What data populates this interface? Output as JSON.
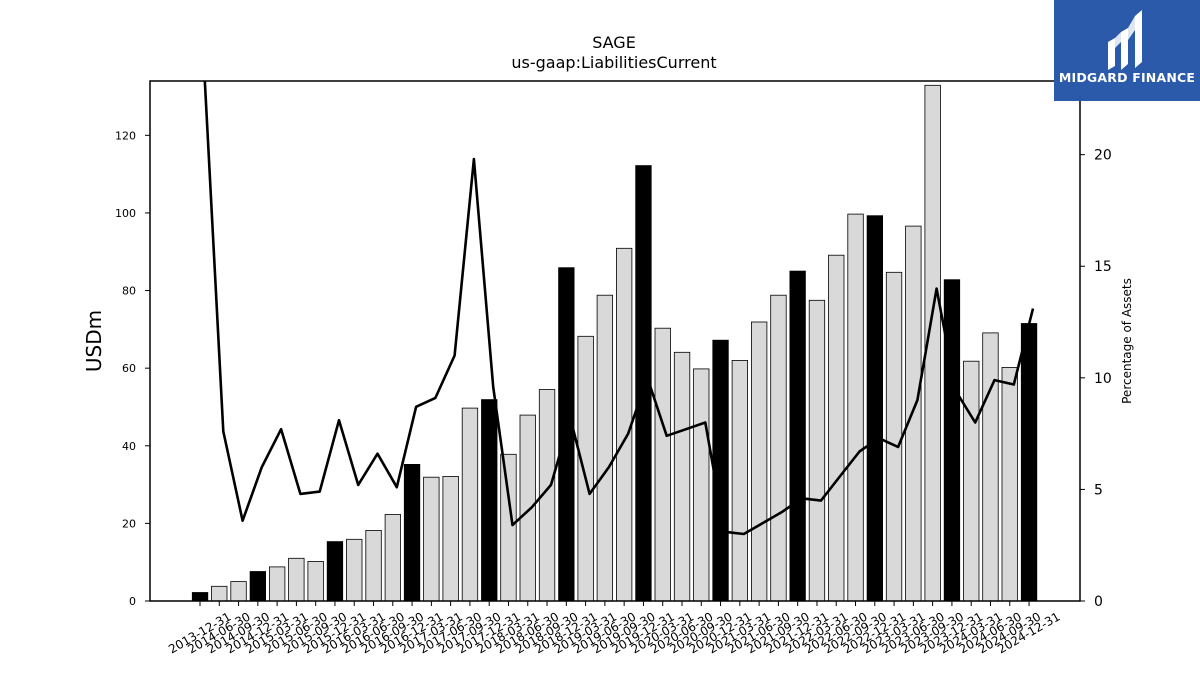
{
  "chart_data": {
    "type": "bar",
    "title": "SAGE",
    "subtitle": "us-gaap:LiabilitiesCurrent",
    "ylabel": "USDm",
    "y2label": "Percentage of Assets",
    "ylim": [
      0,
      134
    ],
    "y2lim": [
      0,
      23.3
    ],
    "yticks": [
      0,
      20,
      40,
      60,
      80,
      100,
      120
    ],
    "y2ticks": [
      0,
      5,
      10,
      15,
      20
    ],
    "categories": [
      "2013-12-31",
      "2014-06-30",
      "2014-09-30",
      "2014-12-31",
      "2015-03-31",
      "2015-06-30",
      "2015-09-30",
      "2015-12-31",
      "2016-03-31",
      "2016-06-30",
      "2016-09-30",
      "2016-12-31",
      "2017-03-31",
      "2017-06-30",
      "2017-09-30",
      "2017-12-31",
      "2018-03-31",
      "2018-06-30",
      "2018-09-30",
      "2018-12-31",
      "2019-03-31",
      "2019-06-30",
      "2019-09-30",
      "2019-12-31",
      "2020-03-31",
      "2020-06-30",
      "2020-09-30",
      "2020-12-31",
      "2021-03-31",
      "2021-06-30",
      "2021-09-30",
      "2021-12-31",
      "2022-03-31",
      "2022-06-30",
      "2022-09-30",
      "2022-12-31",
      "2023-03-31",
      "2023-06-30",
      "2023-09-30",
      "2023-12-31",
      "2024-03-31",
      "2024-06-30",
      "2024-09-30",
      "2024-12-31"
    ],
    "series": [
      {
        "type": "bar",
        "values": [
          2.2,
          3.8,
          5.0,
          7.6,
          8.8,
          11.0,
          10.2,
          15.3,
          15.9,
          18.2,
          22.3,
          35.2,
          31.9,
          32.1,
          49.7,
          51.9,
          37.8,
          47.9,
          54.5,
          85.9,
          68.2,
          78.8,
          90.9,
          112.2,
          70.3,
          64.1,
          59.8,
          67.2,
          62.0,
          71.9,
          78.8,
          85.0,
          77.5,
          89.1,
          99.7,
          99.3,
          84.7,
          96.6,
          132.9,
          82.8,
          61.8,
          69.1,
          60.2,
          71.5
        ],
        "annual_flags": [
          1,
          0,
          0,
          1,
          0,
          0,
          0,
          1,
          0,
          0,
          0,
          1,
          0,
          0,
          0,
          1,
          0,
          0,
          0,
          1,
          0,
          0,
          0,
          1,
          0,
          0,
          0,
          1,
          0,
          0,
          0,
          1,
          0,
          0,
          0,
          1,
          0,
          0,
          0,
          1,
          0,
          0,
          0,
          1
        ],
        "annual_color": "#000000",
        "quarter_color": "#d9d9d9"
      },
      {
        "type": "line",
        "axis": "right",
        "color": "#000000",
        "values": [
          24.0,
          7.6,
          3.6,
          6.0,
          7.7,
          4.8,
          4.9,
          8.1,
          5.2,
          6.6,
          5.1,
          8.7,
          9.1,
          11.0,
          19.8,
          9.6,
          3.4,
          4.2,
          5.2,
          8.2,
          4.8,
          6.0,
          7.5,
          10.0,
          7.4,
          7.7,
          8.0,
          3.1,
          3.0,
          3.5,
          4.0,
          4.6,
          4.5,
          5.6,
          6.7,
          7.3,
          6.9,
          9.0,
          14.0,
          9.4,
          8.0,
          9.9,
          9.7,
          13.1
        ]
      }
    ]
  },
  "logo": {
    "text": "MIDGARD FINANCE"
  }
}
